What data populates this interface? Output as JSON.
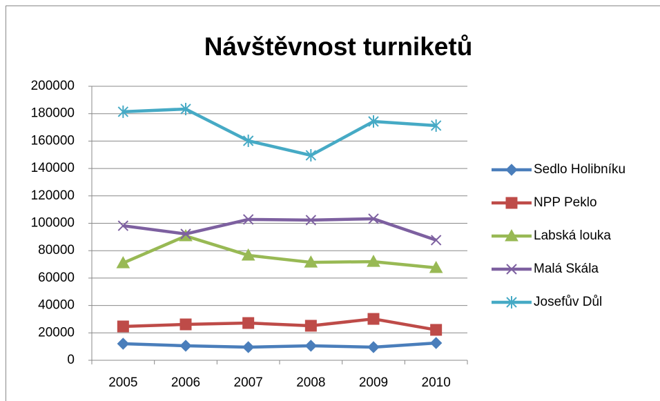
{
  "chart_data": {
    "type": "line",
    "title": "Návštěvnost turniketů",
    "categories": [
      "2005",
      "2006",
      "2007",
      "2008",
      "2009",
      "2010"
    ],
    "series": [
      {
        "name": "Sedlo Holibníku",
        "color": "#4a7ebb",
        "marker": "diamond",
        "values": [
          12100,
          10600,
          9600,
          10600,
          9600,
          12600
        ]
      },
      {
        "name": "NPP Peklo",
        "color": "#be4b48",
        "marker": "square",
        "values": [
          24700,
          26200,
          27200,
          25200,
          30200,
          22200
        ]
      },
      {
        "name": "Labská louka",
        "color": "#98b954",
        "marker": "triangle",
        "values": [
          71000,
          90700,
          76600,
          71500,
          72000,
          67500
        ]
      },
      {
        "name": "Malá Skála",
        "color": "#7d60a0",
        "marker": "x",
        "values": [
          98200,
          92200,
          102800,
          102300,
          103300,
          87700
        ]
      },
      {
        "name": "Josefův Důl",
        "color": "#46aac5",
        "marker": "star",
        "values": [
          181400,
          183400,
          160200,
          149600,
          174300,
          171300
        ]
      }
    ],
    "ylim": [
      0,
      200000
    ],
    "yticks": [
      0,
      20000,
      40000,
      60000,
      80000,
      100000,
      120000,
      140000,
      160000,
      180000,
      200000
    ],
    "grid": true,
    "legend": "right"
  }
}
